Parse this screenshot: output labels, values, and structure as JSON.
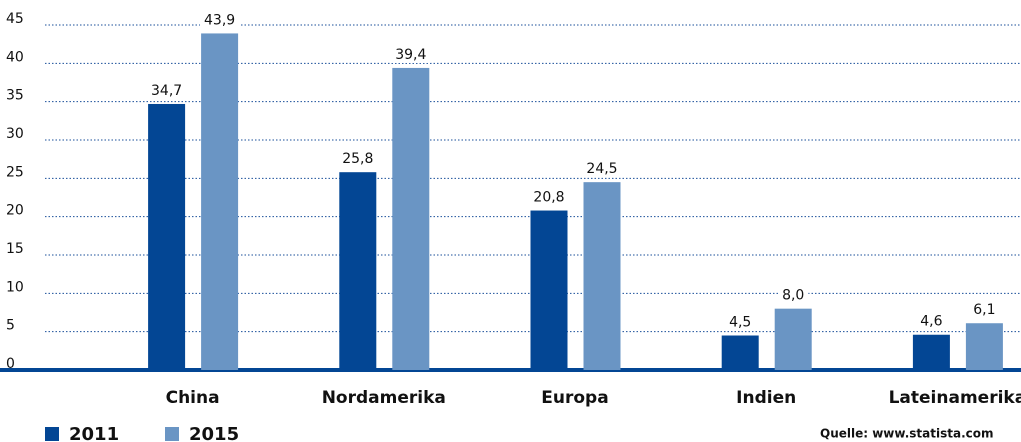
{
  "chart_data": {
    "type": "bar",
    "categories": [
      "China",
      "Nordamerika",
      "Europa",
      "Indien",
      "Lateinamerika"
    ],
    "series": [
      {
        "name": "2011",
        "color": "#034694",
        "values": [
          34.7,
          25.8,
          20.8,
          4.5,
          4.6
        ],
        "value_labels": [
          "34,7",
          "25,8",
          "20,8",
          "4,5",
          "4,6"
        ]
      },
      {
        "name": "2015",
        "color": "#6a95c4",
        "values": [
          43.9,
          39.4,
          24.5,
          8.0,
          6.1
        ],
        "value_labels": [
          "43,9",
          "39,4",
          "24,5",
          "8,0",
          "6,1"
        ]
      }
    ],
    "ylim": [
      0,
      45
    ],
    "yticks": [
      0,
      5,
      10,
      15,
      20,
      25,
      30,
      35,
      40,
      45
    ],
    "grid": true,
    "legend": "bottom-left",
    "source": "Quelle: www.statista.com"
  }
}
